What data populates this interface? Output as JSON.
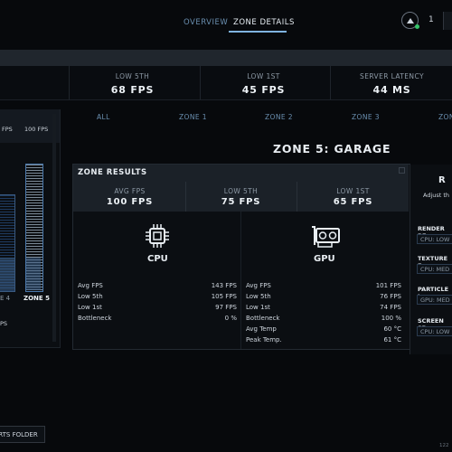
{
  "nav": {
    "tabs": [
      "OVERVIEW",
      "ZONE DETAILS"
    ],
    "active": "ZONE DETAILS",
    "notification_count": "1"
  },
  "stats": [
    {
      "label": "LOW 5TH",
      "value": "68 FPS"
    },
    {
      "label": "LOW 1ST",
      "value": "45 FPS"
    },
    {
      "label": "SERVER LATENCY",
      "value": "44 MS"
    }
  ],
  "left_panel": {
    "fps_values": [
      "FPS",
      "100 FPS"
    ],
    "zones": [
      "E 4",
      "ZONE 5"
    ],
    "footnote": "PS"
  },
  "zone_tabs": [
    "ALL",
    "ZONE 1",
    "ZONE 2",
    "ZONE 3",
    "ZON"
  ],
  "zone_title": "ZONE 5: GARAGE",
  "zone_results": {
    "header": "ZONE RESULTS",
    "summary": [
      {
        "label": "AVG FPS",
        "value": "100 FPS"
      },
      {
        "label": "LOW 5TH",
        "value": "75 FPS"
      },
      {
        "label": "LOW 1ST",
        "value": "65 FPS"
      }
    ],
    "cpu": {
      "title": "CPU",
      "rows": [
        {
          "label": "Avg FPS",
          "value": "143 FPS"
        },
        {
          "label": "Low 5th",
          "value": "105 FPS"
        },
        {
          "label": "Low 1st",
          "value": "97 FPS"
        },
        {
          "label": "Bottleneck",
          "value": "0 %"
        }
      ]
    },
    "gpu": {
      "title": "GPU",
      "rows": [
        {
          "label": "Avg FPS",
          "value": "101 FPS"
        },
        {
          "label": "Low 5th",
          "value": "76 FPS"
        },
        {
          "label": "Low 1st",
          "value": "74 FPS"
        },
        {
          "label": "Bottleneck",
          "value": "100 %"
        },
        {
          "label": "Avg Temp",
          "value": "60 °C"
        },
        {
          "label": "Peak Temp.",
          "value": "61 °C"
        }
      ]
    }
  },
  "right_panel": {
    "title": "R",
    "subtitle": "Adjust th",
    "settings": [
      {
        "label": "RENDER RE",
        "value": "CPU: LOW"
      },
      {
        "label": "TEXTURE F",
        "value": "CPU: MED"
      },
      {
        "label": "PARTICLE I",
        "value": "GPU: MED"
      },
      {
        "label": "SCREEN SP",
        "value": "CPU: LOW"
      }
    ]
  },
  "footer": {
    "folder_button": "RTS FOLDER",
    "version": "122"
  },
  "colors": {
    "accent": "#7fb3e0",
    "background": "#07090c",
    "status_ok": "#36c46a"
  }
}
